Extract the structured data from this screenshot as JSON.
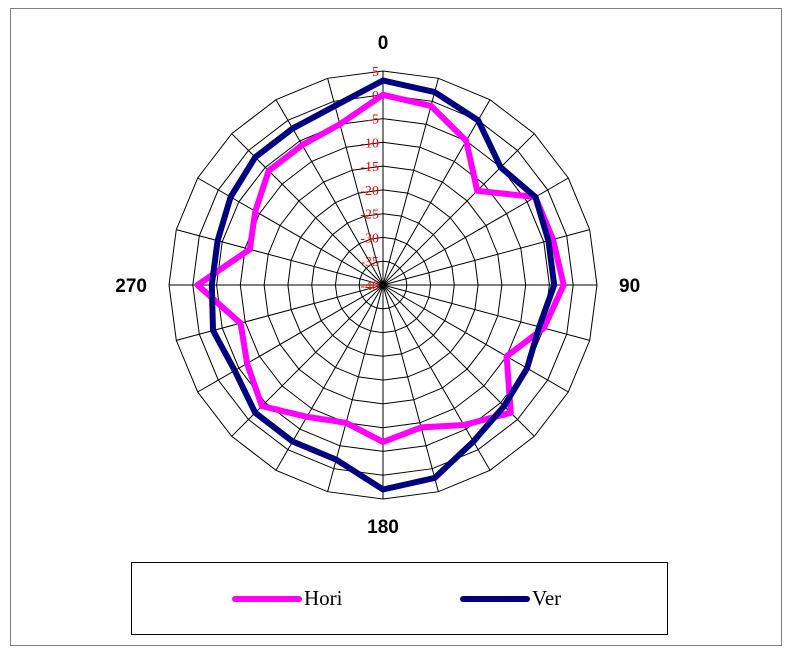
{
  "chart_data": {
    "type": "polar-line",
    "angles": [
      0,
      15,
      30,
      45,
      60,
      75,
      90,
      105,
      120,
      135,
      150,
      165,
      180,
      195,
      210,
      225,
      240,
      255,
      270,
      285,
      300,
      315,
      330,
      345
    ],
    "angle_labels": [
      {
        "angle": 0,
        "text": "0"
      },
      {
        "angle": 90,
        "text": "90"
      },
      {
        "angle": 180,
        "text": "180"
      },
      {
        "angle": 270,
        "text": "270"
      }
    ],
    "radial_ticks": [
      5,
      0,
      -5,
      -10,
      -15,
      -20,
      -25,
      -30,
      -35,
      -40
    ],
    "radial_range": [
      -40,
      5
    ],
    "series": [
      {
        "name": "Hori",
        "color": "#ff00ff",
        "values": [
          0,
          -1,
          -5,
          -12,
          -3,
          -3,
          -2,
          -5,
          -10,
          -2,
          -6,
          -9,
          -7,
          -10,
          -8,
          -4,
          -7,
          -9,
          -1,
          -11,
          -9,
          -6,
          -6,
          -5
        ]
      },
      {
        "name": "Ver",
        "color": "#000080",
        "values": [
          3,
          2,
          0,
          -5,
          -3,
          -4,
          -4,
          -6,
          -5,
          -4,
          -2,
          2,
          3,
          -2,
          -2,
          -2,
          -4,
          -3,
          -4,
          -4,
          -3,
          -2,
          -2,
          -1
        ]
      }
    ],
    "legend": {
      "position": "bottom"
    },
    "grid": true
  }
}
